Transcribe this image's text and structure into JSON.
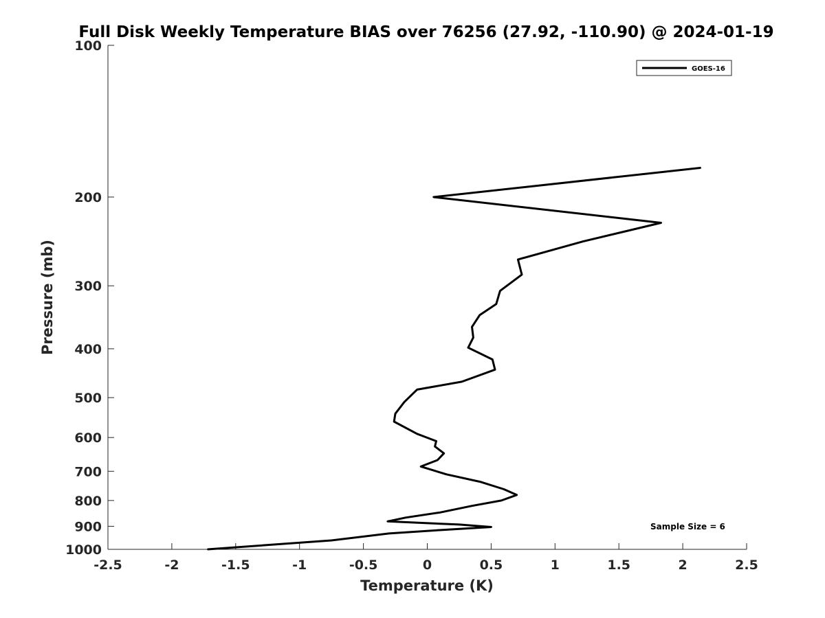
{
  "chart_data": {
    "type": "line",
    "title": "Full Disk Weekly Temperature BIAS over 76256 (27.92, -110.90) @ 2024-01-19",
    "xlabel": "Temperature (K)",
    "ylabel": "Pressure (mb)",
    "xlim": [
      -2.5,
      2.5
    ],
    "ylim": [
      100,
      1000
    ],
    "y_scale": "log",
    "y_reversed": true,
    "x_ticks": [
      "-2.5",
      "-2",
      "-1.5",
      "-1",
      "-0.5",
      "0",
      "0.5",
      "1",
      "1.5",
      "2",
      "2.5"
    ],
    "x_tick_values": [
      -2.5,
      -2,
      -1.5,
      -1,
      -0.5,
      0,
      0.5,
      1,
      1.5,
      2,
      2.5
    ],
    "y_ticks": [
      "100",
      "200",
      "300",
      "400",
      "500",
      "600",
      "700",
      "800",
      "900",
      "1000"
    ],
    "y_tick_values": [
      100,
      200,
      300,
      400,
      500,
      600,
      700,
      800,
      900,
      1000
    ],
    "grid": false,
    "legend_position": "top-right",
    "annotation": "Sample Size = 6",
    "series": [
      {
        "name": "GOES-16",
        "color": "#000000",
        "points": [
          [
            2.14,
            175
          ],
          [
            0.05,
            200
          ],
          [
            1.83,
            225
          ],
          [
            1.22,
            245
          ],
          [
            0.71,
            266
          ],
          [
            0.74,
            285
          ],
          [
            0.57,
            307
          ],
          [
            0.54,
            326
          ],
          [
            0.41,
            343
          ],
          [
            0.35,
            362
          ],
          [
            0.36,
            380
          ],
          [
            0.32,
            398
          ],
          [
            0.51,
            420
          ],
          [
            0.53,
            440
          ],
          [
            0.27,
            465
          ],
          [
            -0.08,
            482
          ],
          [
            -0.18,
            510
          ],
          [
            -0.25,
            538
          ],
          [
            -0.26,
            558
          ],
          [
            -0.08,
            590
          ],
          [
            0.07,
            610
          ],
          [
            0.06,
            625
          ],
          [
            0.13,
            645
          ],
          [
            0.08,
            665
          ],
          [
            -0.05,
            685
          ],
          [
            0.15,
            710
          ],
          [
            0.42,
            735
          ],
          [
            0.6,
            760
          ],
          [
            0.7,
            780
          ],
          [
            0.58,
            800
          ],
          [
            0.35,
            820
          ],
          [
            0.1,
            845
          ],
          [
            -0.17,
            865
          ],
          [
            -0.31,
            880
          ],
          [
            0.25,
            893
          ],
          [
            0.5,
            903
          ],
          [
            0.12,
            915
          ],
          [
            -0.3,
            930
          ],
          [
            -0.75,
            960
          ],
          [
            -1.72,
            1000
          ]
        ]
      }
    ]
  }
}
